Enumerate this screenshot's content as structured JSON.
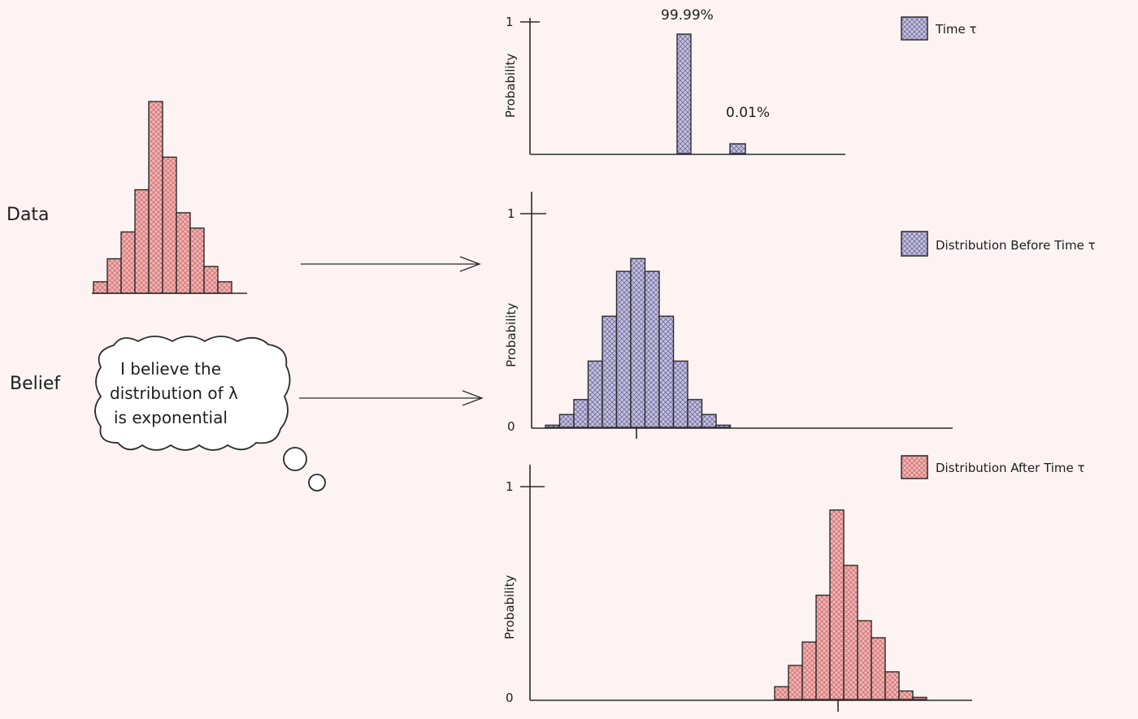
{
  "labels": {
    "data": "Data",
    "belief": "Belief"
  },
  "bubble": {
    "lines": [
      "I believe the",
      "distribution of λ",
      "is exponential"
    ]
  },
  "colors": {
    "red_fill": "#f0a6a6",
    "red_stroke": "#2b2b2b",
    "blue_fill": "#b9b4d6",
    "blue_stroke": "#2b2b2b"
  },
  "chart_data": [
    {
      "type": "bar",
      "name": "data-histogram",
      "values": [
        0.06,
        0.18,
        0.32,
        0.54,
        1.0,
        0.71,
        0.42,
        0.34,
        0.14,
        0.06
      ],
      "color": "#f0a6a6"
    },
    {
      "type": "bar",
      "ylabel": "Probability",
      "yticks": [
        "1"
      ],
      "ylim": [
        0,
        1
      ],
      "values": [
        0.9999,
        0.0001
      ],
      "data_labels": [
        "99.99%",
        "0.01%"
      ],
      "legend": "Time τ",
      "color": "#b9b4d6"
    },
    {
      "type": "bar",
      "ylabel": "Probability",
      "yticks": [
        "1",
        "0"
      ],
      "ylim": [
        0,
        1
      ],
      "values": [
        0.01,
        0.06,
        0.13,
        0.31,
        0.52,
        0.73,
        0.79,
        0.73,
        0.52,
        0.31,
        0.13,
        0.06,
        0.01
      ],
      "legend": "Distribution Before Time τ",
      "color": "#b9b4d6"
    },
    {
      "type": "bar",
      "ylabel": "Probability",
      "yticks": [
        "1",
        "0"
      ],
      "ylim": [
        0,
        1
      ],
      "values": [
        0.06,
        0.16,
        0.27,
        0.49,
        0.89,
        0.63,
        0.37,
        0.29,
        0.13,
        0.04,
        0.01
      ],
      "legend": "Distribution After Time τ",
      "color": "#f0a6a6"
    }
  ]
}
